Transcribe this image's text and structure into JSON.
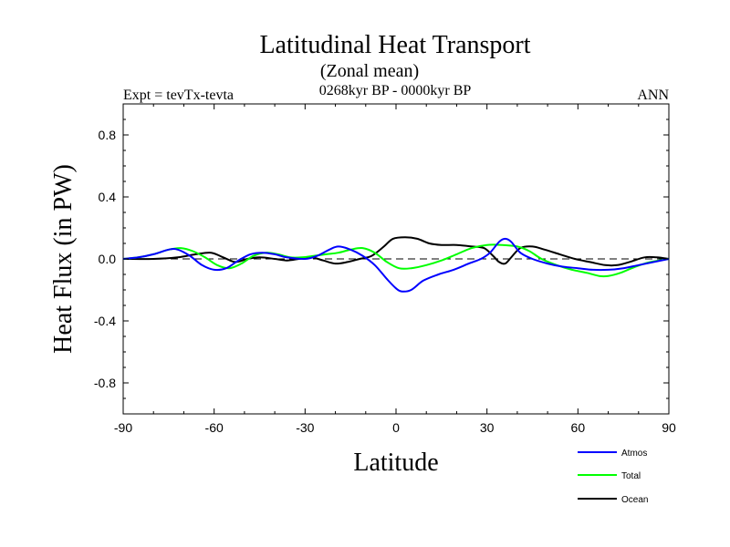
{
  "chart_data": {
    "type": "line",
    "title": "Latitudinal Heat Transport",
    "subtitle": "(Zonal mean)",
    "period": "0268kyr BP - 0000kyr BP",
    "experiment": "Expt = tevTx-tevta",
    "season": "ANN",
    "xlabel": "Latitude",
    "ylabel": "Heat Flux (in PW)",
    "xlim": [
      -90,
      90
    ],
    "ylim": [
      -1.0,
      1.0
    ],
    "x_ticks": [
      -90,
      -60,
      -30,
      0,
      30,
      60,
      90
    ],
    "x_tick_labels": [
      "-90",
      "-60",
      "-30",
      "0",
      "30",
      "60",
      "90"
    ],
    "y_ticks": [
      -0.8,
      -0.4,
      0.0,
      0.4,
      0.8
    ],
    "y_tick_labels": [
      "-0.8",
      "-0.4",
      "0.0",
      "0.4",
      "0.8"
    ],
    "zero_line": true,
    "grid": false,
    "legend_position": "bottom-right",
    "series": [
      {
        "name": "Atmos",
        "color": "#0000ff",
        "points": [
          [
            -90,
            0.0
          ],
          [
            -85,
            0.01
          ],
          [
            -80,
            0.03
          ],
          [
            -75,
            0.06
          ],
          [
            -72,
            0.06
          ],
          [
            -68,
            0.02
          ],
          [
            -64,
            -0.04
          ],
          [
            -60,
            -0.07
          ],
          [
            -56,
            -0.06
          ],
          [
            -52,
            -0.01
          ],
          [
            -48,
            0.03
          ],
          [
            -44,
            0.04
          ],
          [
            -40,
            0.03
          ],
          [
            -36,
            0.01
          ],
          [
            -30,
            0.0
          ],
          [
            -26,
            0.02
          ],
          [
            -22,
            0.06
          ],
          [
            -19,
            0.08
          ],
          [
            -15,
            0.06
          ],
          [
            -11,
            0.02
          ],
          [
            -7,
            -0.04
          ],
          [
            -3,
            -0.13
          ],
          [
            0,
            -0.19
          ],
          [
            2,
            -0.21
          ],
          [
            5,
            -0.2
          ],
          [
            9,
            -0.14
          ],
          [
            14,
            -0.1
          ],
          [
            19,
            -0.07
          ],
          [
            24,
            -0.03
          ],
          [
            28,
            0.0
          ],
          [
            31,
            0.04
          ],
          [
            34,
            0.11
          ],
          [
            36,
            0.13
          ],
          [
            38,
            0.11
          ],
          [
            41,
            0.04
          ],
          [
            45,
            0.0
          ],
          [
            50,
            -0.03
          ],
          [
            55,
            -0.05
          ],
          [
            60,
            -0.06
          ],
          [
            65,
            -0.07
          ],
          [
            70,
            -0.07
          ],
          [
            75,
            -0.06
          ],
          [
            80,
            -0.04
          ],
          [
            85,
            -0.02
          ],
          [
            90,
            0.0
          ]
        ]
      },
      {
        "name": "Total",
        "color": "#00ff00",
        "points": [
          [
            -90,
            0.0
          ],
          [
            -85,
            0.01
          ],
          [
            -80,
            0.03
          ],
          [
            -75,
            0.06
          ],
          [
            -71,
            0.07
          ],
          [
            -67,
            0.05
          ],
          [
            -63,
            0.01
          ],
          [
            -59,
            -0.04
          ],
          [
            -55,
            -0.06
          ],
          [
            -51,
            -0.03
          ],
          [
            -47,
            0.02
          ],
          [
            -43,
            0.04
          ],
          [
            -39,
            0.03
          ],
          [
            -35,
            0.01
          ],
          [
            -31,
            0.01
          ],
          [
            -27,
            0.02
          ],
          [
            -23,
            0.03
          ],
          [
            -19,
            0.04
          ],
          [
            -15,
            0.06
          ],
          [
            -11,
            0.07
          ],
          [
            -7,
            0.04
          ],
          [
            -3,
            -0.02
          ],
          [
            1,
            -0.06
          ],
          [
            5,
            -0.06
          ],
          [
            10,
            -0.04
          ],
          [
            15,
            -0.01
          ],
          [
            20,
            0.03
          ],
          [
            25,
            0.07
          ],
          [
            30,
            0.09
          ],
          [
            35,
            0.09
          ],
          [
            40,
            0.08
          ],
          [
            44,
            0.05
          ],
          [
            48,
            0.0
          ],
          [
            53,
            -0.04
          ],
          [
            58,
            -0.07
          ],
          [
            63,
            -0.09
          ],
          [
            67,
            -0.11
          ],
          [
            70,
            -0.11
          ],
          [
            74,
            -0.09
          ],
          [
            79,
            -0.05
          ],
          [
            84,
            -0.02
          ],
          [
            90,
            0.0
          ]
        ]
      },
      {
        "name": "Ocean",
        "color": "#000000",
        "points": [
          [
            -90,
            0.0
          ],
          [
            -80,
            0.0
          ],
          [
            -72,
            0.01
          ],
          [
            -66,
            0.03
          ],
          [
            -61,
            0.04
          ],
          [
            -57,
            0.01
          ],
          [
            -53,
            -0.02
          ],
          [
            -49,
            0.0
          ],
          [
            -45,
            0.01
          ],
          [
            -40,
            0.0
          ],
          [
            -36,
            -0.01
          ],
          [
            -32,
            0.0
          ],
          [
            -28,
            0.01
          ],
          [
            -24,
            -0.01
          ],
          [
            -20,
            -0.03
          ],
          [
            -16,
            -0.02
          ],
          [
            -12,
            0.0
          ],
          [
            -8,
            0.02
          ],
          [
            -4,
            0.08
          ],
          [
            -1,
            0.13
          ],
          [
            3,
            0.14
          ],
          [
            7,
            0.13
          ],
          [
            11,
            0.1
          ],
          [
            15,
            0.09
          ],
          [
            20,
            0.09
          ],
          [
            25,
            0.08
          ],
          [
            29,
            0.07
          ],
          [
            32,
            0.02
          ],
          [
            34,
            -0.02
          ],
          [
            36,
            -0.03
          ],
          [
            38,
            0.01
          ],
          [
            41,
            0.07
          ],
          [
            45,
            0.08
          ],
          [
            49,
            0.06
          ],
          [
            54,
            0.03
          ],
          [
            59,
            0.0
          ],
          [
            64,
            -0.02
          ],
          [
            69,
            -0.04
          ],
          [
            73,
            -0.04
          ],
          [
            77,
            -0.02
          ],
          [
            82,
            0.01
          ],
          [
            86,
            0.01
          ],
          [
            90,
            0.0
          ]
        ]
      }
    ]
  }
}
